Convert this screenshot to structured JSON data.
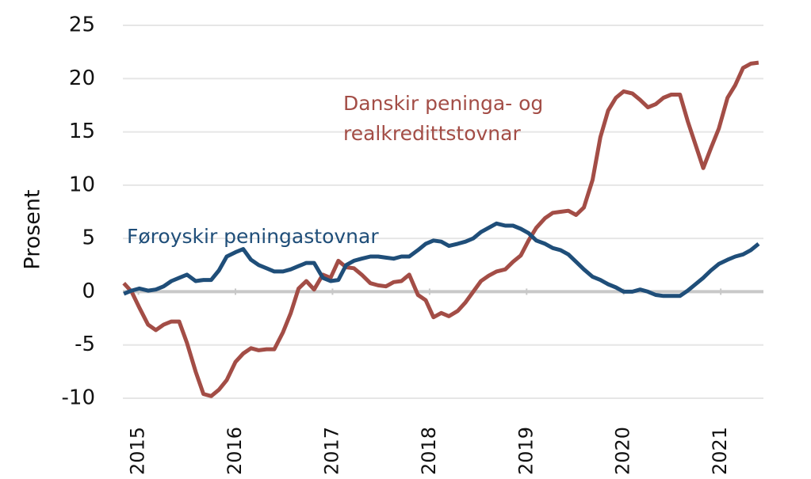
{
  "chart_data": {
    "type": "line",
    "ylabel": "Prosent",
    "x": [
      2014.85,
      2014.93,
      2015.01,
      2015.1,
      2015.18,
      2015.26,
      2015.34,
      2015.42,
      2015.5,
      2015.59,
      2015.67,
      2015.75,
      2015.83,
      2015.91,
      2016.0,
      2016.08,
      2016.16,
      2016.24,
      2016.32,
      2016.4,
      2016.49,
      2016.57,
      2016.65,
      2016.73,
      2016.81,
      2016.9,
      2016.98,
      2017.06,
      2017.14,
      2017.22,
      2017.3,
      2017.39,
      2017.47,
      2017.55,
      2017.63,
      2017.71,
      2017.79,
      2017.88,
      2017.96,
      2018.04,
      2018.12,
      2018.2,
      2018.29,
      2018.37,
      2018.45,
      2018.53,
      2018.61,
      2018.69,
      2018.78,
      2018.86,
      2018.94,
      2019.02,
      2019.1,
      2019.19,
      2019.27,
      2019.35,
      2019.43,
      2019.51,
      2019.59,
      2019.68,
      2019.76,
      2019.84,
      2019.92,
      2020.0,
      2020.09,
      2020.17,
      2020.25,
      2020.33,
      2020.41,
      2020.49,
      2020.58,
      2020.66,
      2020.74,
      2020.82,
      2020.9,
      2020.98,
      2021.07,
      2021.15,
      2021.23,
      2021.31,
      2021.39
    ],
    "series": [
      {
        "name": "Danskir peninga- og realkredittstovnar",
        "label_lines": [
          "Danskir peninga- og",
          "realkredittstovnar"
        ],
        "color": "#a34d46",
        "values": [
          0.8,
          0,
          -1.5,
          -3.1,
          -3.6,
          -3.1,
          -2.8,
          -2.8,
          -4.8,
          -7.5,
          -9.6,
          -9.8,
          -9.2,
          -8.3,
          -6.6,
          -5.8,
          -5.3,
          -5.5,
          -5.4,
          -5.4,
          -3.8,
          -2.0,
          0.3,
          1.0,
          0.2,
          1.6,
          1.3,
          2.9,
          2.3,
          2.2,
          1.6,
          0.8,
          0.6,
          0.5,
          0.9,
          1.0,
          1.6,
          -0.3,
          -0.8,
          -2.4,
          -2.0,
          -2.3,
          -1.8,
          -1.0,
          0.0,
          1.0,
          1.5,
          1.9,
          2.1,
          2.8,
          3.4,
          4.8,
          6.0,
          6.9,
          7.4,
          7.5,
          7.6,
          7.2,
          7.9,
          10.5,
          14.5,
          17.0,
          18.2,
          18.8,
          18.6,
          18.0,
          17.3,
          17.6,
          18.2,
          18.5,
          18.5,
          16.0,
          13.8,
          11.6,
          13.5,
          15.3,
          18.2,
          19.4,
          21.0,
          21.4,
          21.5
        ]
      },
      {
        "name": "Føroyskir peningastovnar",
        "color": "#1f4e79",
        "values": [
          -0.2,
          0.1,
          0.3,
          0.1,
          0.2,
          0.5,
          1.0,
          1.3,
          1.6,
          1.0,
          1.1,
          1.1,
          2.0,
          3.3,
          3.7,
          4.0,
          3.0,
          2.5,
          2.2,
          1.9,
          1.9,
          2.1,
          2.4,
          2.7,
          2.7,
          1.3,
          1.0,
          1.1,
          2.5,
          2.9,
          3.1,
          3.3,
          3.3,
          3.2,
          3.1,
          3.3,
          3.3,
          3.9,
          4.5,
          4.8,
          4.7,
          4.3,
          4.5,
          4.7,
          5.0,
          5.6,
          6.0,
          6.4,
          6.2,
          6.2,
          5.9,
          5.5,
          4.8,
          4.5,
          4.1,
          3.9,
          3.5,
          2.8,
          2.1,
          1.4,
          1.1,
          0.7,
          0.4,
          0.0,
          0.0,
          0.2,
          0.0,
          -0.3,
          -0.4,
          -0.4,
          -0.4,
          0.1,
          0.7,
          1.3,
          2.0,
          2.6,
          3.0,
          3.3,
          3.5,
          3.9,
          4.5
        ]
      }
    ],
    "xlim": [
      2014.84,
      2021.44
    ],
    "xticks": [
      2015,
      2016,
      2017,
      2018,
      2019,
      2020,
      2021
    ],
    "ylim": [
      -10,
      25
    ],
    "yticks": [
      -10,
      -5,
      0,
      5,
      10,
      15,
      20,
      25
    ],
    "grid": true
  }
}
